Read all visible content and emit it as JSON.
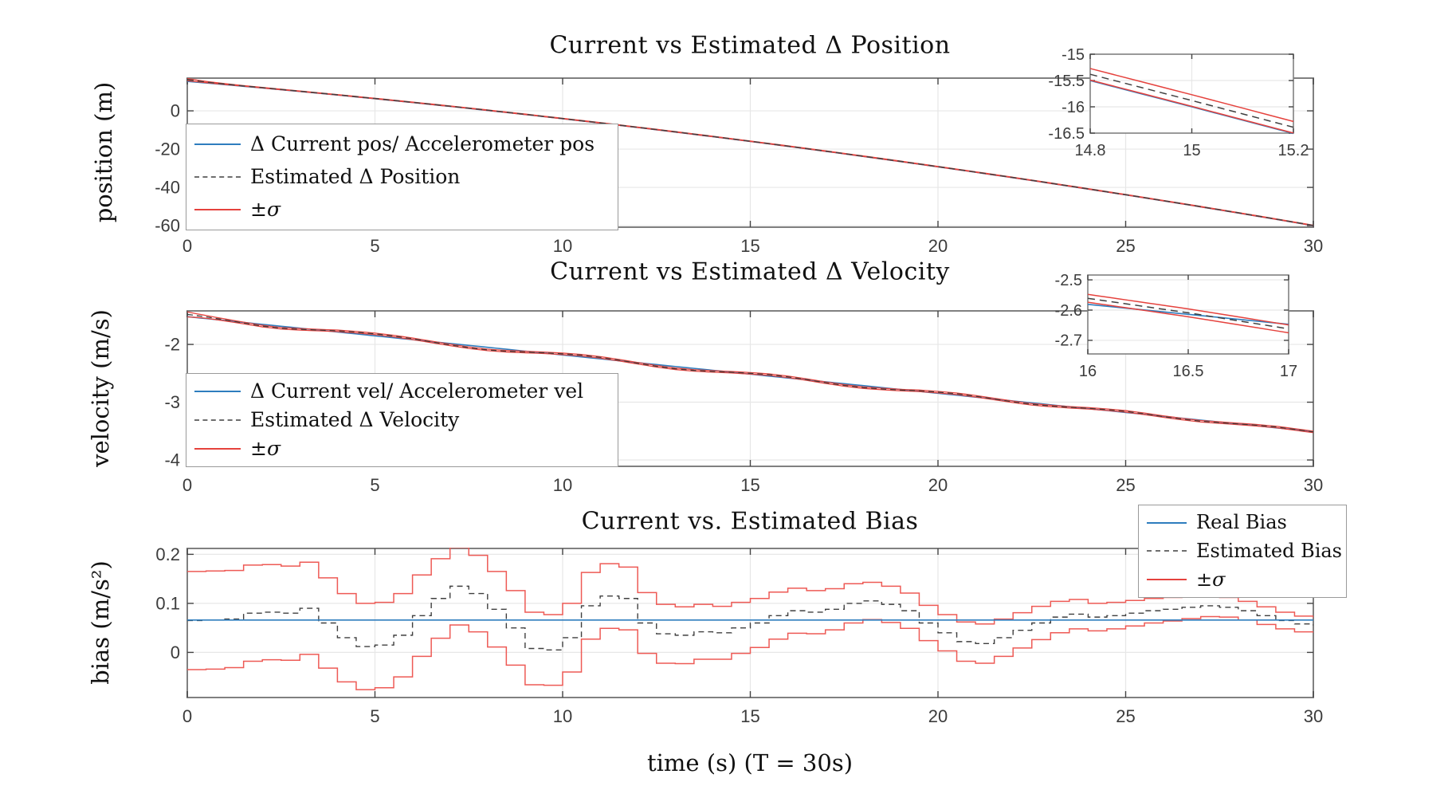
{
  "figure": {
    "bg": "#ffffff"
  },
  "colors": {
    "current": "#2e7dbe",
    "estimated": "#3f3f3f",
    "sigma": "#e5423d",
    "sigma_bias": "#ee5a55",
    "frame": "#808080",
    "grid": "#e7e7e7",
    "tick_text": "#3c3c3c"
  },
  "xlabel": "time (s) (T = 30s)",
  "plots": [
    {
      "title": "Current vs Estimated Δ Position",
      "ylabel": "position (m)",
      "legend": [
        "Δ Current pos/ Accelerometer pos",
        "Estimated Δ Position",
        "±σ"
      ]
    },
    {
      "title": "Current vs Estimated Δ Velocity",
      "ylabel": "velocity (m/s)",
      "legend": [
        "Δ Current vel/ Accelerometer vel",
        "Estimated Δ Velocity",
        "±σ"
      ]
    },
    {
      "title": "Current vs. Estimated Bias",
      "ylabel": "bias (m/s²)",
      "legend": [
        "Real Bias",
        "Estimated Bias",
        "±σ"
      ]
    }
  ],
  "chart_data": [
    {
      "type": "line",
      "title": "Current vs Estimated Δ Position",
      "ylabel": "position (m)",
      "xlim": [
        0,
        30
      ],
      "ylim": [
        -60.8,
        17.1
      ],
      "xticks": [
        0,
        5,
        10,
        15,
        20,
        25,
        30
      ],
      "yticks": [
        0,
        -20,
        -40,
        -60
      ],
      "grid": true,
      "x_step": 1,
      "series": [
        {
          "name": "Δ Current pos/ Accelerometer pos",
          "role": "current",
          "values": [
            15.4,
            13.7,
            11.94,
            10.13,
            8.26,
            6.33,
            4.35,
            2.31,
            0.22,
            -1.93,
            -4.13,
            -6.39,
            -8.71,
            -11.08,
            -13.51,
            -16.0,
            -18.54,
            -21.14,
            -23.79,
            -26.5,
            -29.27,
            -32.09,
            -34.96,
            -37.9,
            -40.89,
            -43.93,
            -47.03,
            -50.19,
            -53.4,
            -56.67,
            -60.0
          ]
        },
        {
          "name": "Estimated Δ Position",
          "role": "estimated",
          "offset_from_current": 0.12,
          "offset_start": 0.8,
          "offset_tau": 0.7
        },
        {
          "name": "±σ",
          "role": "sigma-band",
          "sigma": 0.11,
          "sigma_start": 0.45,
          "sigma_tau": 0.6
        }
      ],
      "inset": {
        "xlim": [
          14.8,
          15.2
        ],
        "ylim": [
          -16.5,
          -15
        ],
        "xticks": [
          14.8,
          15,
          15.2
        ],
        "yticks": [
          -15,
          -15.5,
          -16,
          -16.5
        ]
      }
    },
    {
      "type": "line",
      "title": "Current vs Estimated Δ Velocity",
      "ylabel": "velocity (m/s)",
      "xlim": [
        0,
        30
      ],
      "ylim": [
        -4.11,
        -1.42
      ],
      "xticks": [
        0,
        5,
        10,
        15,
        20,
        25,
        30
      ],
      "yticks": [
        -2,
        -3,
        -4
      ],
      "grid": true,
      "x_step": 1,
      "series": [
        {
          "name": "Δ Current vel/ Accelerometer vel",
          "role": "current",
          "values": [
            -1.52,
            -1.586,
            -1.653,
            -1.719,
            -1.785,
            -1.852,
            -1.918,
            -1.984,
            -2.05,
            -2.117,
            -2.183,
            -2.249,
            -2.316,
            -2.382,
            -2.448,
            -2.515,
            -2.581,
            -2.647,
            -2.713,
            -2.78,
            -2.846,
            -2.912,
            -2.979,
            -3.045,
            -3.111,
            -3.178,
            -3.244,
            -3.31,
            -3.376,
            -3.443,
            -3.509
          ]
        },
        {
          "name": "Estimated Δ Velocity",
          "role": "estimated",
          "dev_step": 0.5,
          "deviation_from_current": [
            0.04,
            0.03,
            0.01,
            -0.01,
            -0.03,
            -0.035,
            -0.02,
            0.0,
            0.02,
            0.03,
            0.035,
            0.03,
            0.015,
            -0.005,
            -0.025,
            -0.04,
            -0.045,
            -0.035,
            -0.015,
            0.005,
            0.02,
            0.03,
            0.025,
            0.01,
            -0.01,
            -0.03,
            -0.04,
            -0.035,
            -0.02,
            0.0,
            0.015,
            0.025,
            0.02,
            0.005,
            -0.015,
            -0.03,
            -0.035,
            -0.025,
            -0.01,
            0.01,
            0.02,
            0.025,
            0.015,
            0.0,
            -0.015,
            -0.025,
            -0.02,
            -0.01,
            0.005,
            0.015,
            0.02,
            0.01,
            -0.005,
            -0.015,
            -0.02,
            -0.01,
            0.0,
            0.01,
            0.015,
            0.005,
            -0.005
          ]
        },
        {
          "name": "±σ",
          "role": "sigma-band",
          "sigma": 0.013,
          "sigma_start": 0.03,
          "sigma_tau": 0.5
        }
      ],
      "inset": {
        "xlim": [
          16,
          17
        ],
        "ylim": [
          -2.745,
          -2.484
        ],
        "xticks": [
          16,
          16.5,
          17
        ],
        "yticks": [
          -2.5,
          -2.6,
          -2.7
        ]
      }
    },
    {
      "type": "stairs",
      "title": "Current vs. Estimated Bias",
      "ylabel": "bias (m/s²)",
      "xlim": [
        0,
        30
      ],
      "ylim": [
        -0.092,
        0.212
      ],
      "xticks": [
        0,
        5,
        10,
        15,
        20,
        25,
        30
      ],
      "yticks": [
        0.2,
        0.1,
        0
      ],
      "grid": true,
      "x_step": 0.5,
      "series": [
        {
          "name": "Real Bias",
          "role": "current",
          "constant": 0.066
        },
        {
          "name": "Estimated Bias",
          "role": "estimated",
          "values": [
            0.065,
            0.066,
            0.068,
            0.08,
            0.082,
            0.08,
            0.09,
            0.06,
            0.03,
            0.012,
            0.015,
            0.035,
            0.075,
            0.11,
            0.135,
            0.12,
            0.088,
            0.05,
            0.008,
            0.005,
            0.03,
            0.095,
            0.115,
            0.11,
            0.06,
            0.038,
            0.035,
            0.042,
            0.04,
            0.05,
            0.06,
            0.075,
            0.085,
            0.082,
            0.088,
            0.1,
            0.105,
            0.098,
            0.085,
            0.06,
            0.04,
            0.022,
            0.018,
            0.03,
            0.045,
            0.06,
            0.072,
            0.078,
            0.072,
            0.075,
            0.08,
            0.085,
            0.088,
            0.092,
            0.095,
            0.092,
            0.085,
            0.075,
            0.065,
            0.058,
            0.055
          ]
        },
        {
          "name": "±σ",
          "role": "sigma-band",
          "sigma_values": [
            0.1,
            0.1,
            0.099,
            0.098,
            0.097,
            0.096,
            0.094,
            0.092,
            0.09,
            0.088,
            0.087,
            0.085,
            0.083,
            0.081,
            0.079,
            0.078,
            0.077,
            0.076,
            0.074,
            0.072,
            0.07,
            0.068,
            0.066,
            0.064,
            0.062,
            0.06,
            0.058,
            0.056,
            0.054,
            0.052,
            0.05,
            0.048,
            0.046,
            0.044,
            0.042,
            0.04,
            0.038,
            0.037,
            0.036,
            0.036,
            0.037,
            0.04,
            0.04,
            0.038,
            0.036,
            0.034,
            0.032,
            0.03,
            0.028,
            0.027,
            0.026,
            0.025,
            0.024,
            0.023,
            0.022,
            0.02,
            0.019,
            0.018,
            0.017,
            0.016,
            0.015
          ]
        }
      ]
    }
  ]
}
